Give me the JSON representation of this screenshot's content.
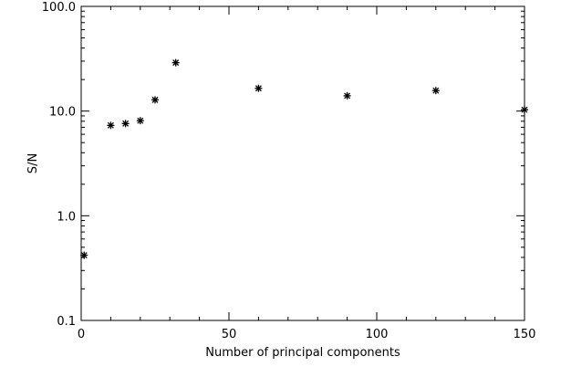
{
  "chart_data": {
    "type": "scatter",
    "title": "",
    "xlabel": "Number of principal components",
    "ylabel": "S/N",
    "x_scale": "linear",
    "y_scale": "log",
    "xlim": [
      0,
      150
    ],
    "ylim": [
      0.1,
      100
    ],
    "x_ticks": [
      0,
      50,
      100,
      150
    ],
    "x_tick_labels": [
      "0",
      "50",
      "100",
      "150"
    ],
    "y_ticks": [
      0.1,
      1,
      10,
      100
    ],
    "y_tick_labels": [
      "0.1",
      "1.0",
      "10.0",
      "100.0"
    ],
    "grid": false,
    "marker": "asterisk",
    "marker_color": "#000000",
    "series": [
      {
        "points": [
          {
            "x": 1,
            "y": 0.42
          },
          {
            "x": 10,
            "y": 7.3
          },
          {
            "x": 15,
            "y": 7.6
          },
          {
            "x": 20,
            "y": 8.1
          },
          {
            "x": 25,
            "y": 12.8
          },
          {
            "x": 32,
            "y": 29.0
          },
          {
            "x": 60,
            "y": 16.5
          },
          {
            "x": 90,
            "y": 14.0
          },
          {
            "x": 120,
            "y": 15.7
          },
          {
            "x": 150,
            "y": 10.3
          }
        ]
      }
    ]
  }
}
